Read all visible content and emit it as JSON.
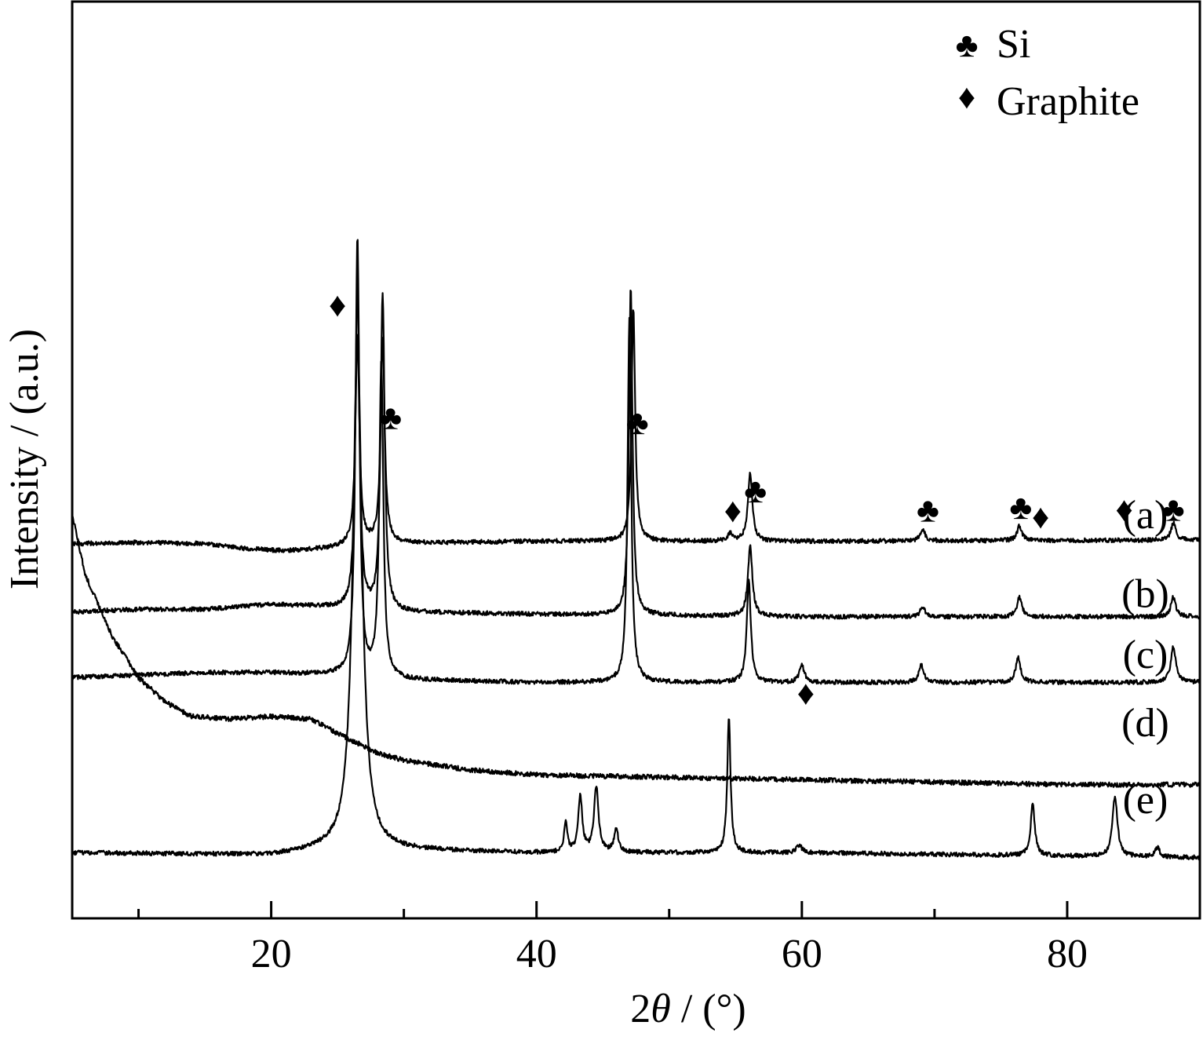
{
  "chart_data": {
    "type": "line",
    "xlabel_prefix": "2",
    "xlabel_symbol": "θ",
    "xlabel_suffix": " / (°)",
    "ylabel": "Intensity / (a.u.)",
    "xlim": [
      5,
      90
    ],
    "xticks": [
      20,
      40,
      60,
      80
    ],
    "xticks_minor": [
      10,
      30,
      50,
      70,
      90
    ],
    "yticks_shown": false,
    "grid": false,
    "legend_position": "top-right",
    "legend": [
      {
        "symbol": "♣",
        "label": "Si"
      },
      {
        "symbol": "♦",
        "label": "Graphite"
      }
    ],
    "series": [
      {
        "name": "(a)",
        "baseline": [
          [
            5,
            0.17
          ],
          [
            10,
            0.165
          ],
          [
            15,
            0.17
          ],
          [
            18,
            0.19
          ],
          [
            21,
            0.2
          ],
          [
            24,
            0.19
          ],
          [
            28,
            0.17
          ],
          [
            40,
            0.16
          ],
          [
            60,
            0.16
          ],
          [
            90,
            0.155
          ]
        ],
        "peaks": [
          [
            26.5,
            0.86,
            0.18
          ],
          [
            28.4,
            0.84,
            0.18
          ],
          [
            47.3,
            0.96,
            0.16
          ],
          [
            54.6,
            0.03,
            0.22
          ],
          [
            56.1,
            0.28,
            0.2
          ],
          [
            69.1,
            0.05,
            0.22
          ],
          [
            76.4,
            0.06,
            0.22
          ],
          [
            88.0,
            0.07,
            0.22
          ]
        ],
        "noise": 0.009
      },
      {
        "name": "(b)",
        "baseline": [
          [
            5,
            0.45
          ],
          [
            10,
            0.44
          ],
          [
            15,
            0.44
          ],
          [
            20,
            0.42
          ],
          [
            24,
            0.43
          ],
          [
            28,
            0.45
          ],
          [
            40,
            0.46
          ],
          [
            60,
            0.47
          ],
          [
            90,
            0.47
          ]
        ],
        "peaks": [
          [
            26.5,
            1.35,
            0.18
          ],
          [
            28.4,
            1.3,
            0.18
          ],
          [
            47.1,
            1.35,
            0.16
          ],
          [
            56.1,
            0.29,
            0.2
          ],
          [
            69.1,
            0.04,
            0.22
          ],
          [
            76.4,
            0.08,
            0.22
          ],
          [
            88.0,
            0.08,
            0.22
          ]
        ],
        "noise": 0.009
      },
      {
        "name": "(c)",
        "baseline": [
          [
            5,
            0.72
          ],
          [
            10,
            0.71
          ],
          [
            15,
            0.7
          ],
          [
            20,
            0.7
          ],
          [
            25,
            0.71
          ],
          [
            30,
            0.73
          ],
          [
            40,
            0.74
          ],
          [
            60,
            0.74
          ],
          [
            90,
            0.74
          ]
        ],
        "peaks": [
          [
            26.5,
            1.8,
            0.18
          ],
          [
            28.3,
            1.3,
            0.18
          ],
          [
            47.0,
            1.5,
            0.16
          ],
          [
            56.0,
            0.42,
            0.18
          ],
          [
            60.0,
            0.07,
            0.22
          ],
          [
            69.0,
            0.07,
            0.22
          ],
          [
            76.3,
            0.1,
            0.22
          ],
          [
            88.0,
            0.15,
            0.22
          ]
        ],
        "noise": 0.009
      },
      {
        "name": "(d)",
        "baseline": [
          [
            5,
            0.05
          ],
          [
            6,
            0.3
          ],
          [
            8,
            0.55
          ],
          [
            10,
            0.72
          ],
          [
            12,
            0.82
          ],
          [
            14,
            0.88
          ],
          [
            17,
            0.89
          ],
          [
            20,
            0.88
          ],
          [
            23,
            0.89
          ],
          [
            25,
            0.95
          ],
          [
            28,
            1.03
          ],
          [
            30,
            1.06
          ],
          [
            35,
            1.1
          ],
          [
            40,
            1.12
          ],
          [
            50,
            1.13
          ],
          [
            60,
            1.14
          ],
          [
            70,
            1.15
          ],
          [
            80,
            1.16
          ],
          [
            90,
            1.16
          ]
        ],
        "peaks": [],
        "noise": 0.01
      },
      {
        "name": "(e)",
        "baseline": [
          [
            5,
            1.44
          ],
          [
            20,
            1.45
          ],
          [
            24,
            1.43
          ],
          [
            30,
            1.43
          ],
          [
            40,
            1.44
          ],
          [
            60,
            1.44
          ],
          [
            90,
            1.46
          ]
        ],
        "peaks": [
          [
            26.5,
            2.1,
            0.42
          ],
          [
            42.2,
            0.12,
            0.15
          ],
          [
            43.3,
            0.23,
            0.18
          ],
          [
            44.5,
            0.27,
            0.2
          ],
          [
            46.0,
            0.1,
            0.18
          ],
          [
            54.5,
            0.55,
            0.15
          ],
          [
            59.8,
            0.03,
            0.25
          ],
          [
            77.4,
            0.22,
            0.18
          ],
          [
            83.6,
            0.25,
            0.22
          ],
          [
            86.8,
            0.04,
            0.2
          ]
        ],
        "noise": 0.009
      }
    ],
    "series_label_x": 85,
    "series_label_offsets": [
      0.01,
      0.0,
      0.02,
      0.16,
      0.14
    ],
    "markers": [
      {
        "symbol": "♦",
        "x": 25.0,
        "series": 0,
        "height": 0.95
      },
      {
        "symbol": "♣",
        "x": 29.0,
        "series": 0,
        "height": 0.47
      },
      {
        "symbol": "♣",
        "x": 47.6,
        "series": 0,
        "height": 0.44
      },
      {
        "symbol": "♦",
        "x": 54.8,
        "series": 0,
        "height": 0.08
      },
      {
        "symbol": "♣",
        "x": 56.5,
        "series": 0,
        "height": 0.16
      },
      {
        "symbol": "♣",
        "x": 69.5,
        "series": 0,
        "height": 0.08
      },
      {
        "symbol": "♣",
        "x": 76.5,
        "series": 0,
        "height": 0.09
      },
      {
        "symbol": "♦",
        "x": 78.0,
        "series": 0,
        "height": 0.05
      },
      {
        "symbol": "♦",
        "x": 84.3,
        "series": 0,
        "height": 0.08
      },
      {
        "symbol": "♣",
        "x": 88.0,
        "series": 0,
        "height": 0.08
      },
      {
        "symbol": "♦",
        "x": 60.3,
        "series": 2,
        "height": -0.09
      }
    ],
    "colors": {
      "line": "#000000",
      "background": "#ffffff"
    }
  }
}
